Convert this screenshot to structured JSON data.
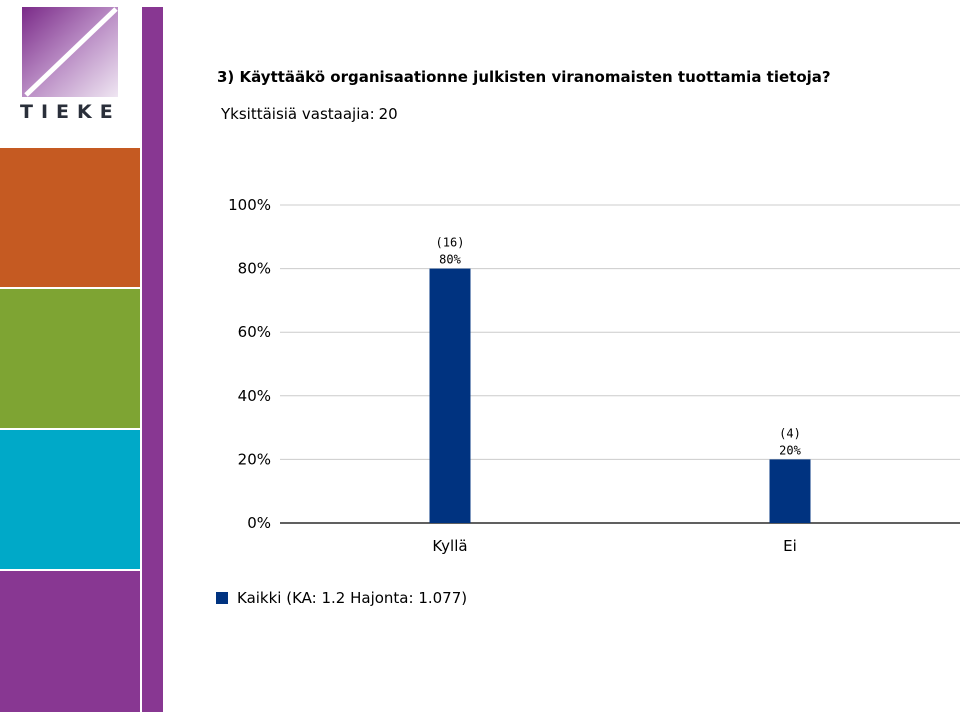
{
  "logo": {
    "text": "TIEKE"
  },
  "colors": {
    "orange": "#c55a22",
    "green": "#7ea433",
    "cyan": "#00a9c8",
    "purple": "#883792",
    "bar": "#003380",
    "grid": "#cccccc"
  },
  "header": {
    "title": "3) Käyttääkö organisaationne julkisten viranomaisten tuottamia tietoja?",
    "subtitle_label": "Yksittäisiä vastaajia:",
    "subtitle_value": "20"
  },
  "chart_data": {
    "type": "bar",
    "categories": [
      "Kyllä",
      "Ei"
    ],
    "series": [
      {
        "name": "Kaikki (KA: 1.2 Hajonta: 1.077)",
        "values": [
          80,
          20
        ],
        "counts": [
          16,
          4
        ]
      }
    ],
    "data_labels": [
      {
        "count": "(16)",
        "percent": "80%"
      },
      {
        "count": "(4)",
        "percent": "20%"
      }
    ],
    "yticks": [
      "0%",
      "20%",
      "40%",
      "60%",
      "80%",
      "100%"
    ],
    "ylim": [
      0,
      100
    ],
    "grid": true,
    "legend_position": "bottom-left"
  }
}
